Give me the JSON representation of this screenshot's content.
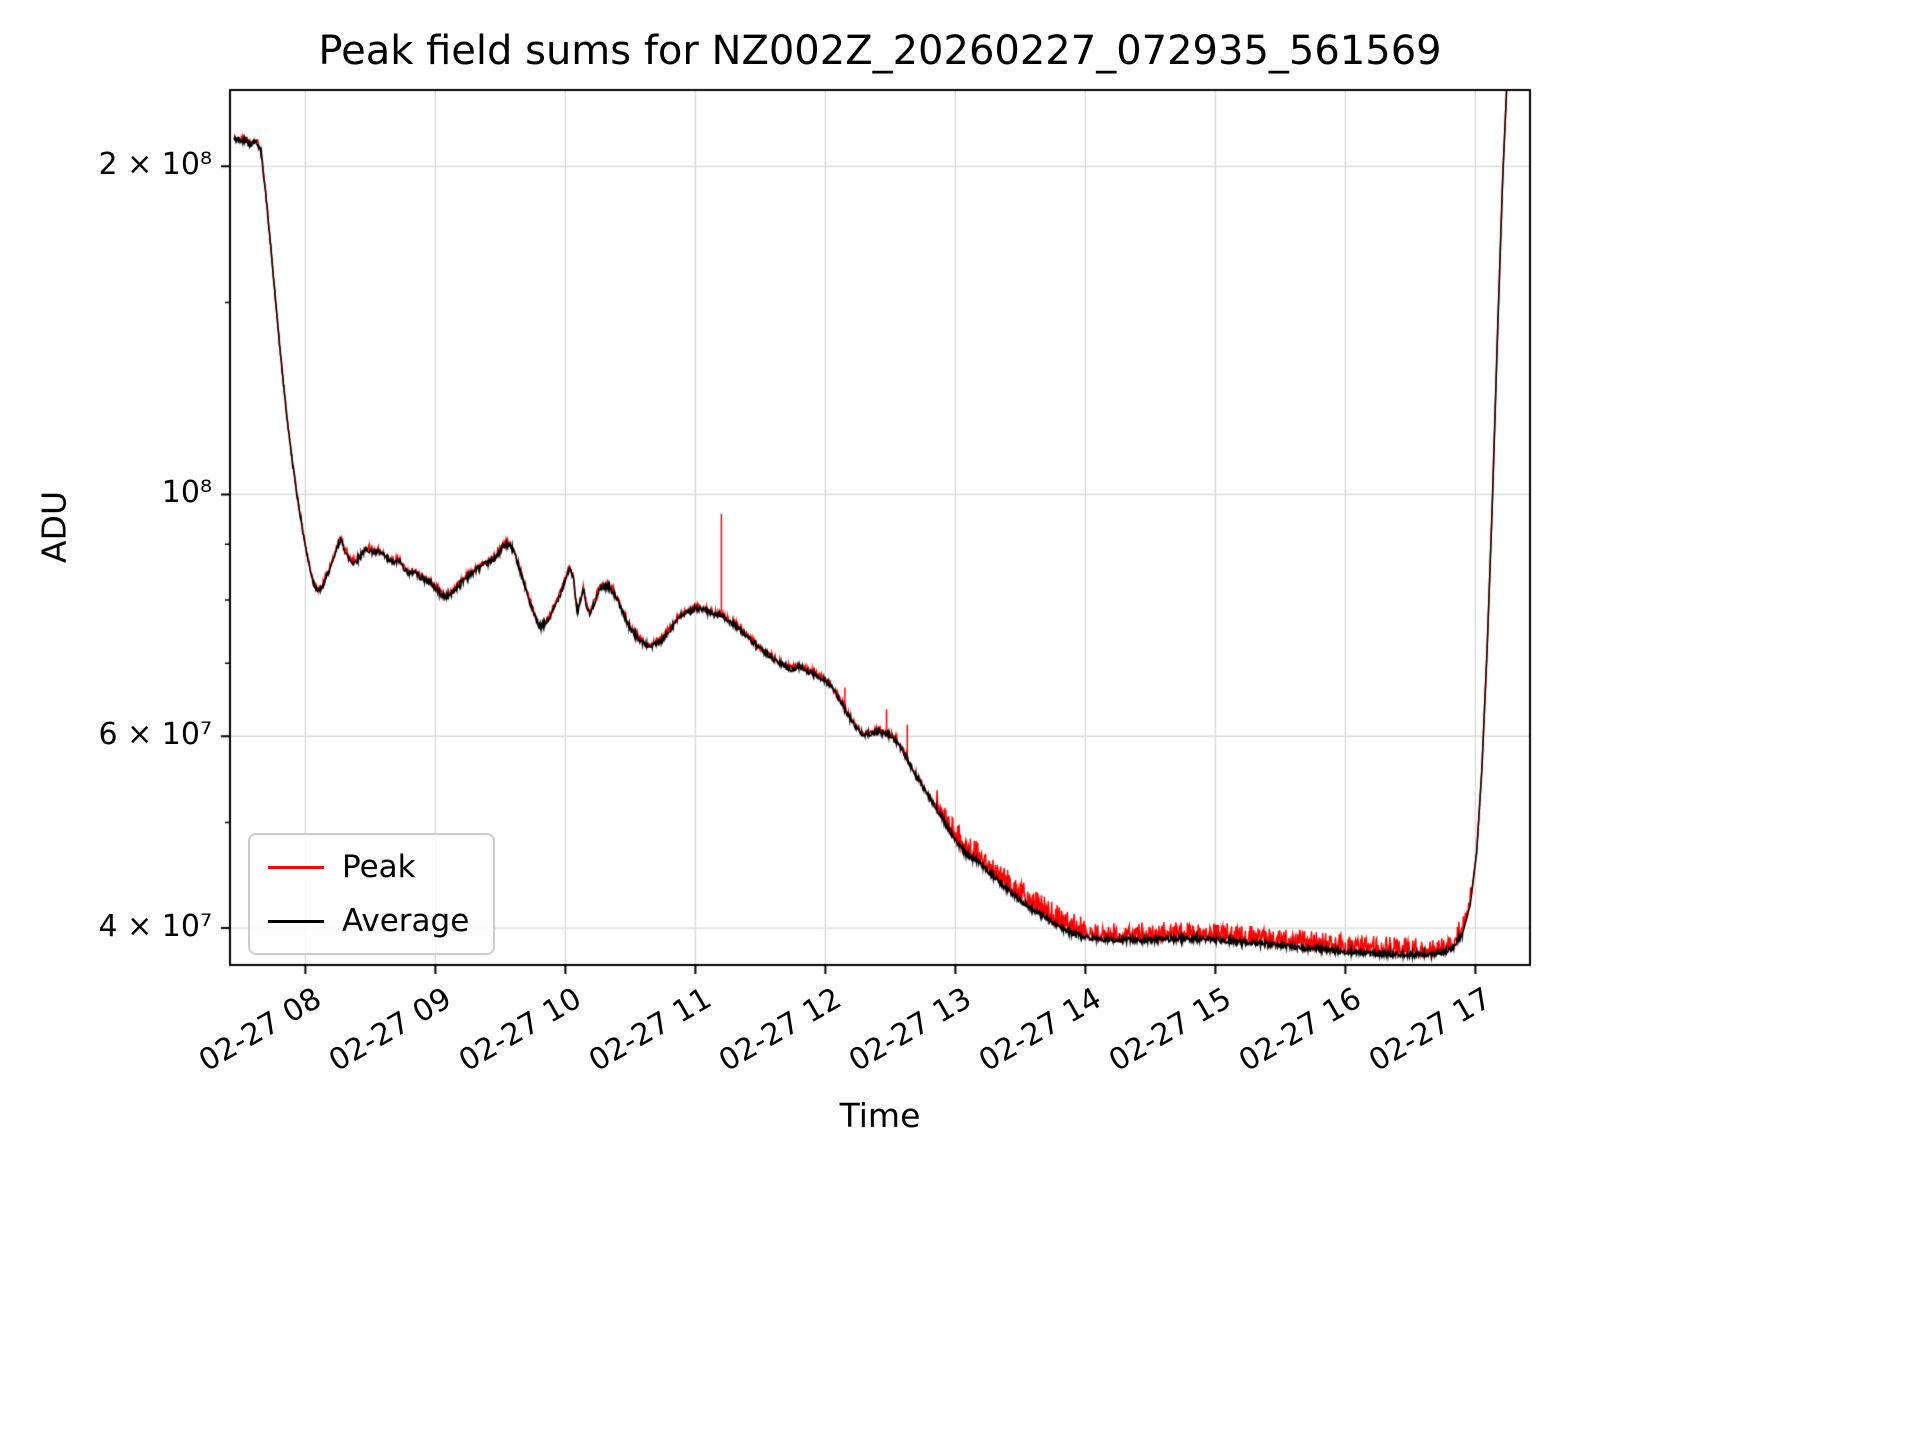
{
  "chart_data": {
    "type": "line",
    "title": "Peak field sums for NZ002Z_20260227_072935_561569",
    "xlabel": "Time",
    "ylabel": "ADU",
    "y_scale": "log",
    "grid": true,
    "xlim": [
      7.42,
      17.42
    ],
    "ylim_millions": [
      37,
      235
    ],
    "x_ticks": [
      {
        "t": 8,
        "label": "02-27 08"
      },
      {
        "t": 9,
        "label": "02-27 09"
      },
      {
        "t": 10,
        "label": "02-27 10"
      },
      {
        "t": 11,
        "label": "02-27 11"
      },
      {
        "t": 12,
        "label": "02-27 12"
      },
      {
        "t": 13,
        "label": "02-27 13"
      },
      {
        "t": 14,
        "label": "02-27 14"
      },
      {
        "t": 15,
        "label": "02-27 15"
      },
      {
        "t": 16,
        "label": "02-27 16"
      },
      {
        "t": 17,
        "label": "02-27 17"
      }
    ],
    "y_ticks": [
      {
        "v": 40,
        "label": "4 × 10⁷"
      },
      {
        "v": 60,
        "label": "6 × 10⁷"
      },
      {
        "v": 100,
        "label": "10⁸"
      },
      {
        "v": 200,
        "label": "2 × 10⁸"
      }
    ],
    "y_minor_ticks": [
      50,
      70,
      80,
      90,
      150
    ],
    "legend": [
      {
        "label": "Peak",
        "color": "#ff0000"
      },
      {
        "label": "Average",
        "color": "#000000"
      }
    ],
    "colors": {
      "grid": "#d9d9d9",
      "spine": "#000000",
      "peak": "#ff0000",
      "average": "#000000"
    },
    "series": {
      "average_base": [
        [
          7.45,
          212
        ],
        [
          7.5,
          211
        ],
        [
          7.54,
          212
        ],
        [
          7.57,
          209
        ],
        [
          7.6,
          211
        ],
        [
          7.63,
          210
        ],
        [
          7.66,
          206
        ],
        [
          7.7,
          186
        ],
        [
          7.74,
          165
        ],
        [
          7.78,
          146
        ],
        [
          7.82,
          130
        ],
        [
          7.86,
          117
        ],
        [
          7.9,
          107
        ],
        [
          7.94,
          99
        ],
        [
          7.98,
          92.5
        ],
        [
          8.02,
          87
        ],
        [
          8.06,
          83
        ],
        [
          8.1,
          81.5
        ],
        [
          8.13,
          82
        ],
        [
          8.16,
          84
        ],
        [
          8.2,
          86
        ],
        [
          8.24,
          89
        ],
        [
          8.27,
          91
        ],
        [
          8.3,
          89
        ],
        [
          8.33,
          87.5
        ],
        [
          8.36,
          86.5
        ],
        [
          8.4,
          87
        ],
        [
          8.44,
          88.5
        ],
        [
          8.48,
          89
        ],
        [
          8.52,
          88.5
        ],
        [
          8.56,
          88.5
        ],
        [
          8.6,
          88
        ],
        [
          8.64,
          87
        ],
        [
          8.68,
          86.5
        ],
        [
          8.72,
          87
        ],
        [
          8.76,
          85.5
        ],
        [
          8.8,
          84.5
        ],
        [
          8.84,
          85
        ],
        [
          8.88,
          84
        ],
        [
          8.92,
          83.5
        ],
        [
          8.96,
          83
        ],
        [
          9.0,
          82
        ],
        [
          9.04,
          81
        ],
        [
          9.08,
          80.5
        ],
        [
          9.12,
          81
        ],
        [
          9.16,
          82
        ],
        [
          9.2,
          83
        ],
        [
          9.24,
          84
        ],
        [
          9.28,
          84.5
        ],
        [
          9.32,
          85.5
        ],
        [
          9.36,
          86
        ],
        [
          9.4,
          86.5
        ],
        [
          9.44,
          87
        ],
        [
          9.48,
          88
        ],
        [
          9.52,
          89.5
        ],
        [
          9.56,
          90
        ],
        [
          9.6,
          89
        ],
        [
          9.64,
          86
        ],
        [
          9.68,
          83
        ],
        [
          9.72,
          80
        ],
        [
          9.76,
          77.5
        ],
        [
          9.8,
          75.5
        ],
        [
          9.84,
          76
        ],
        [
          9.88,
          77
        ],
        [
          9.92,
          79
        ],
        [
          9.96,
          81
        ],
        [
          10.0,
          83.5
        ],
        [
          10.03,
          85.5
        ],
        [
          10.06,
          84
        ],
        [
          10.09,
          78
        ],
        [
          10.12,
          80
        ],
        [
          10.14,
          82
        ],
        [
          10.16,
          79
        ],
        [
          10.19,
          77.5
        ],
        [
          10.23,
          80
        ],
        [
          10.27,
          82
        ],
        [
          10.31,
          82.5
        ],
        [
          10.35,
          82
        ],
        [
          10.39,
          80.5
        ],
        [
          10.43,
          78.5
        ],
        [
          10.47,
          76.5
        ],
        [
          10.51,
          75
        ],
        [
          10.55,
          74
        ],
        [
          10.6,
          73
        ],
        [
          10.65,
          72.5
        ],
        [
          10.7,
          73
        ],
        [
          10.75,
          73.5
        ],
        [
          10.8,
          75
        ],
        [
          10.85,
          76.5
        ],
        [
          10.9,
          77.5
        ],
        [
          10.95,
          78
        ],
        [
          11.0,
          78.5
        ],
        [
          11.05,
          78.5
        ],
        [
          11.1,
          78
        ],
        [
          11.15,
          77.5
        ],
        [
          11.2,
          77.5
        ],
        [
          11.25,
          76.5
        ],
        [
          11.3,
          76
        ],
        [
          11.35,
          75
        ],
        [
          11.4,
          74
        ],
        [
          11.45,
          73
        ],
        [
          11.5,
          72
        ],
        [
          11.55,
          71.5
        ],
        [
          11.6,
          70.5
        ],
        [
          11.65,
          70
        ],
        [
          11.7,
          69.5
        ],
        [
          11.75,
          69
        ],
        [
          11.8,
          69.5
        ],
        [
          11.85,
          69
        ],
        [
          11.9,
          68.5
        ],
        [
          11.95,
          68
        ],
        [
          12.0,
          67.5
        ],
        [
          12.05,
          66.5
        ],
        [
          12.1,
          65
        ],
        [
          12.15,
          63.5
        ],
        [
          12.2,
          62
        ],
        [
          12.25,
          60.8
        ],
        [
          12.3,
          60.2
        ],
        [
          12.36,
          60.4
        ],
        [
          12.42,
          60.5
        ],
        [
          12.48,
          60.2
        ],
        [
          12.54,
          59.5
        ],
        [
          12.6,
          58
        ],
        [
          12.66,
          56.2
        ],
        [
          12.72,
          54.6
        ],
        [
          12.78,
          53.2
        ],
        [
          12.84,
          51.8
        ],
        [
          12.9,
          50.4
        ],
        [
          12.96,
          49
        ],
        [
          13.02,
          47.8
        ],
        [
          13.08,
          46.8
        ],
        [
          13.14,
          46.3
        ],
        [
          13.2,
          45.8
        ],
        [
          13.26,
          45
        ],
        [
          13.32,
          44.3
        ],
        [
          13.38,
          43.6
        ],
        [
          13.44,
          43
        ],
        [
          13.5,
          42.4
        ],
        [
          13.56,
          41.9
        ],
        [
          13.62,
          41.4
        ],
        [
          13.68,
          41
        ],
        [
          13.74,
          40.5
        ],
        [
          13.8,
          40.1
        ],
        [
          13.86,
          39.8
        ],
        [
          13.92,
          39.5
        ],
        [
          13.98,
          39.3
        ],
        [
          14.1,
          39.1
        ],
        [
          14.25,
          39.0
        ],
        [
          14.45,
          39.0
        ],
        [
          14.65,
          39.1
        ],
        [
          14.85,
          39.1
        ],
        [
          15.05,
          39.0
        ],
        [
          15.25,
          38.8
        ],
        [
          15.45,
          38.6
        ],
        [
          15.65,
          38.4
        ],
        [
          15.85,
          38.2
        ],
        [
          16.05,
          38.0
        ],
        [
          16.25,
          37.9
        ],
        [
          16.45,
          37.8
        ],
        [
          16.6,
          37.8
        ],
        [
          16.72,
          37.9
        ],
        [
          16.82,
          38.3
        ],
        [
          16.9,
          39.5
        ],
        [
          16.96,
          42
        ],
        [
          17.01,
          47
        ],
        [
          17.05,
          56
        ],
        [
          17.09,
          72
        ],
        [
          17.13,
          98
        ],
        [
          17.17,
          140
        ],
        [
          17.21,
          195
        ],
        [
          17.25,
          250
        ]
      ],
      "avg_noise": [
        {
          "t0": 7.45,
          "t1": 16.9,
          "amp": 0.006
        }
      ],
      "peak_noise": [
        {
          "t0": 7.45,
          "t1": 12.85,
          "amp": 0.01
        },
        {
          "t0": 12.85,
          "t1": 14.0,
          "amp": 0.045
        },
        {
          "t0": 14.0,
          "t1": 16.97,
          "amp": 0.038
        }
      ],
      "peak_spikes": [
        [
          11.2,
          96
        ],
        [
          12.15,
          66.5
        ],
        [
          12.47,
          63.5
        ],
        [
          12.63,
          61.5
        ]
      ]
    }
  }
}
